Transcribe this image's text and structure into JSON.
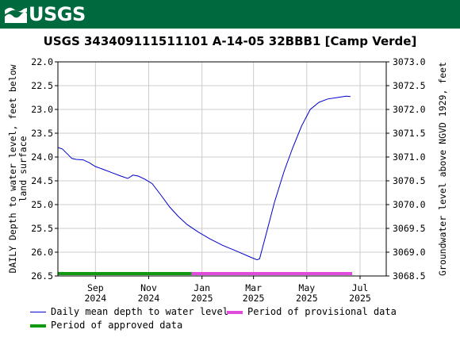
{
  "header": {
    "logo_text": "USGS",
    "brand_color": "#006a3f"
  },
  "chart_data": {
    "type": "line",
    "title": "USGS 343409111511101 A-14-05 32BBB1 [Camp Verde]",
    "ylabel_left": "DAILY Depth to water level, feet below land surface",
    "ylabel_right": "Groundwater level above NGVD 1929, feet",
    "ylim_left": [
      26.5,
      22.0
    ],
    "ylim_right": [
      3068.5,
      3073.0
    ],
    "left_ticks": [
      "22.0",
      "22.5",
      "23.0",
      "23.5",
      "24.0",
      "24.5",
      "25.0",
      "25.5",
      "26.0",
      "26.5"
    ],
    "right_ticks": [
      "3073.0",
      "3072.5",
      "3072.0",
      "3071.5",
      "3071.0",
      "3070.5",
      "3070.0",
      "3069.5",
      "3069.0",
      "3068.5"
    ],
    "xlim": [
      "2024-07-20",
      "2025-07-31"
    ],
    "x_ticks": [
      {
        "date": "2024-09-01",
        "month": "Sep",
        "year": "2024"
      },
      {
        "date": "2024-11-01",
        "month": "Nov",
        "year": "2024"
      },
      {
        "date": "2025-01-01",
        "month": "Jan",
        "year": "2025"
      },
      {
        "date": "2025-03-01",
        "month": "Mar",
        "year": "2025"
      },
      {
        "date": "2025-05-01",
        "month": "May",
        "year": "2025"
      },
      {
        "date": "2025-07-01",
        "month": "Jul",
        "year": "2025"
      }
    ],
    "grid": true,
    "series": [
      {
        "name": "Daily mean depth to water level",
        "color": "#0000cc",
        "points": [
          [
            "2024-07-20",
            23.8
          ],
          [
            "2024-07-25",
            23.83
          ],
          [
            "2024-07-30",
            23.92
          ],
          [
            "2024-08-05",
            24.03
          ],
          [
            "2024-08-10",
            24.05
          ],
          [
            "2024-08-18",
            24.06
          ],
          [
            "2024-08-25",
            24.12
          ],
          [
            "2024-09-01",
            24.2
          ],
          [
            "2024-09-10",
            24.26
          ],
          [
            "2024-09-20",
            24.33
          ],
          [
            "2024-09-30",
            24.4
          ],
          [
            "2024-10-08",
            24.45
          ],
          [
            "2024-10-14",
            24.38
          ],
          [
            "2024-10-20",
            24.4
          ],
          [
            "2024-10-28",
            24.47
          ],
          [
            "2024-11-05",
            24.56
          ],
          [
            "2024-11-15",
            24.8
          ],
          [
            "2024-11-25",
            25.05
          ],
          [
            "2024-12-05",
            25.25
          ],
          [
            "2024-12-15",
            25.42
          ],
          [
            "2024-12-28",
            25.58
          ],
          [
            "2025-01-10",
            25.72
          ],
          [
            "2025-01-25",
            25.86
          ],
          [
            "2025-02-10",
            25.98
          ],
          [
            "2025-02-25",
            26.1
          ],
          [
            "2025-03-05",
            26.16
          ],
          [
            "2025-03-08",
            26.14
          ],
          [
            "2025-03-15",
            25.65
          ],
          [
            "2025-03-25",
            24.95
          ],
          [
            "2025-04-05",
            24.3
          ],
          [
            "2025-04-15",
            23.8
          ],
          [
            "2025-04-25",
            23.35
          ],
          [
            "2025-05-05",
            23.0
          ],
          [
            "2025-05-15",
            22.85
          ],
          [
            "2025-05-25",
            22.78
          ],
          [
            "2025-06-05",
            22.75
          ],
          [
            "2025-06-15",
            22.72
          ],
          [
            "2025-06-20",
            22.73
          ]
        ]
      }
    ],
    "periods": [
      {
        "name": "Period of provisional data",
        "color": "#e04bdc",
        "start": "2024-12-20",
        "end": "2025-06-22"
      },
      {
        "name": "Period of approved data",
        "color": "#119911",
        "start": "2024-07-20",
        "end": "2024-12-20"
      }
    ]
  },
  "legend": {
    "items": [
      {
        "label": "Daily mean depth to water level",
        "color": "#0000cc",
        "kind": "line"
      },
      {
        "label": "Period of provisional data",
        "color": "#e04bdc",
        "kind": "bar"
      },
      {
        "label": "Period of approved data",
        "color": "#119911",
        "kind": "bar"
      }
    ]
  }
}
